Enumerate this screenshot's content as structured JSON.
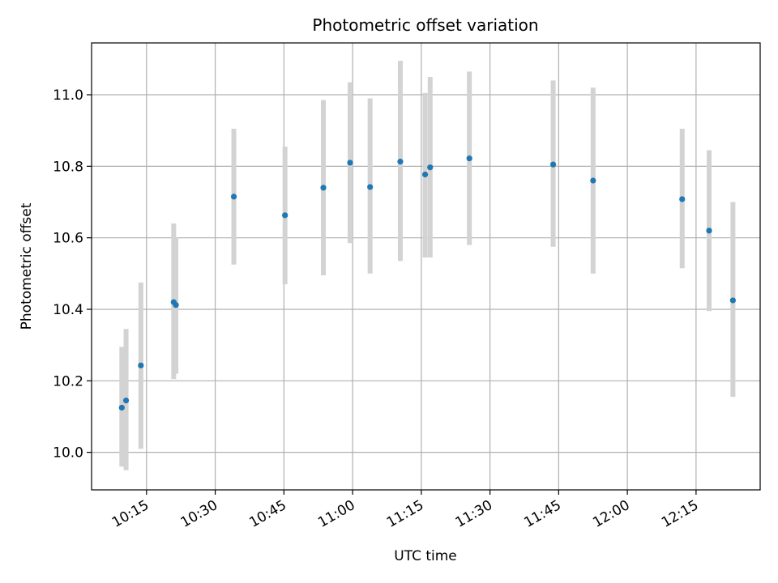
{
  "chart_data": {
    "type": "scatter",
    "title": "Photometric offset variation",
    "xlabel": "UTC time",
    "ylabel": "Photometric offset",
    "x_ticks": [
      "10:15",
      "10:30",
      "10:45",
      "11:00",
      "11:15",
      "11:30",
      "11:45",
      "12:00",
      "12:15"
    ],
    "xlim": [
      "10:03",
      "12:29"
    ],
    "y_ticks": [
      "10.0",
      "10.2",
      "10.4",
      "10.6",
      "10.8",
      "11.0"
    ],
    "ylim": [
      9.895,
      11.145
    ],
    "grid": true,
    "points": [
      {
        "x": "10:09:36",
        "y": 10.125,
        "lo": 9.96,
        "hi": 10.295
      },
      {
        "x": "10:10:32",
        "y": 10.145,
        "lo": 9.95,
        "hi": 10.345
      },
      {
        "x": "10:13:46",
        "y": 10.243,
        "lo": 10.01,
        "hi": 10.475
      },
      {
        "x": "10:20:56",
        "y": 10.42,
        "lo": 10.205,
        "hi": 10.64
      },
      {
        "x": "10:21:25",
        "y": 10.412,
        "lo": 10.22,
        "hi": 10.6
      },
      {
        "x": "10:34:04",
        "y": 10.715,
        "lo": 10.525,
        "hi": 10.905
      },
      {
        "x": "10:45:14",
        "y": 10.663,
        "lo": 10.47,
        "hi": 10.855
      },
      {
        "x": "10:53:37",
        "y": 10.74,
        "lo": 10.495,
        "hi": 10.985
      },
      {
        "x": "10:59:27",
        "y": 10.81,
        "lo": 10.585,
        "hi": 11.035
      },
      {
        "x": "11:03:49",
        "y": 10.742,
        "lo": 10.5,
        "hi": 10.99
      },
      {
        "x": "11:10:25",
        "y": 10.813,
        "lo": 10.535,
        "hi": 11.095
      },
      {
        "x": "11:15:50",
        "y": 10.777,
        "lo": 10.545,
        "hi": 11.005
      },
      {
        "x": "11:16:56",
        "y": 10.797,
        "lo": 10.545,
        "hi": 11.05
      },
      {
        "x": "11:25:30",
        "y": 10.822,
        "lo": 10.58,
        "hi": 11.065
      },
      {
        "x": "11:43:48",
        "y": 10.805,
        "lo": 10.575,
        "hi": 11.04
      },
      {
        "x": "11:52:31",
        "y": 10.76,
        "lo": 10.5,
        "hi": 11.02
      },
      {
        "x": "12:11:58",
        "y": 10.708,
        "lo": 10.515,
        "hi": 10.905
      },
      {
        "x": "12:17:51",
        "y": 10.62,
        "lo": 10.395,
        "hi": 10.845
      },
      {
        "x": "12:23:03",
        "y": 10.425,
        "lo": 10.155,
        "hi": 10.7
      }
    ],
    "colors": {
      "point": "#1f77b4",
      "errorbar": "#d3d3d3",
      "grid": "#b0b0b0",
      "axes": "#000000"
    }
  }
}
